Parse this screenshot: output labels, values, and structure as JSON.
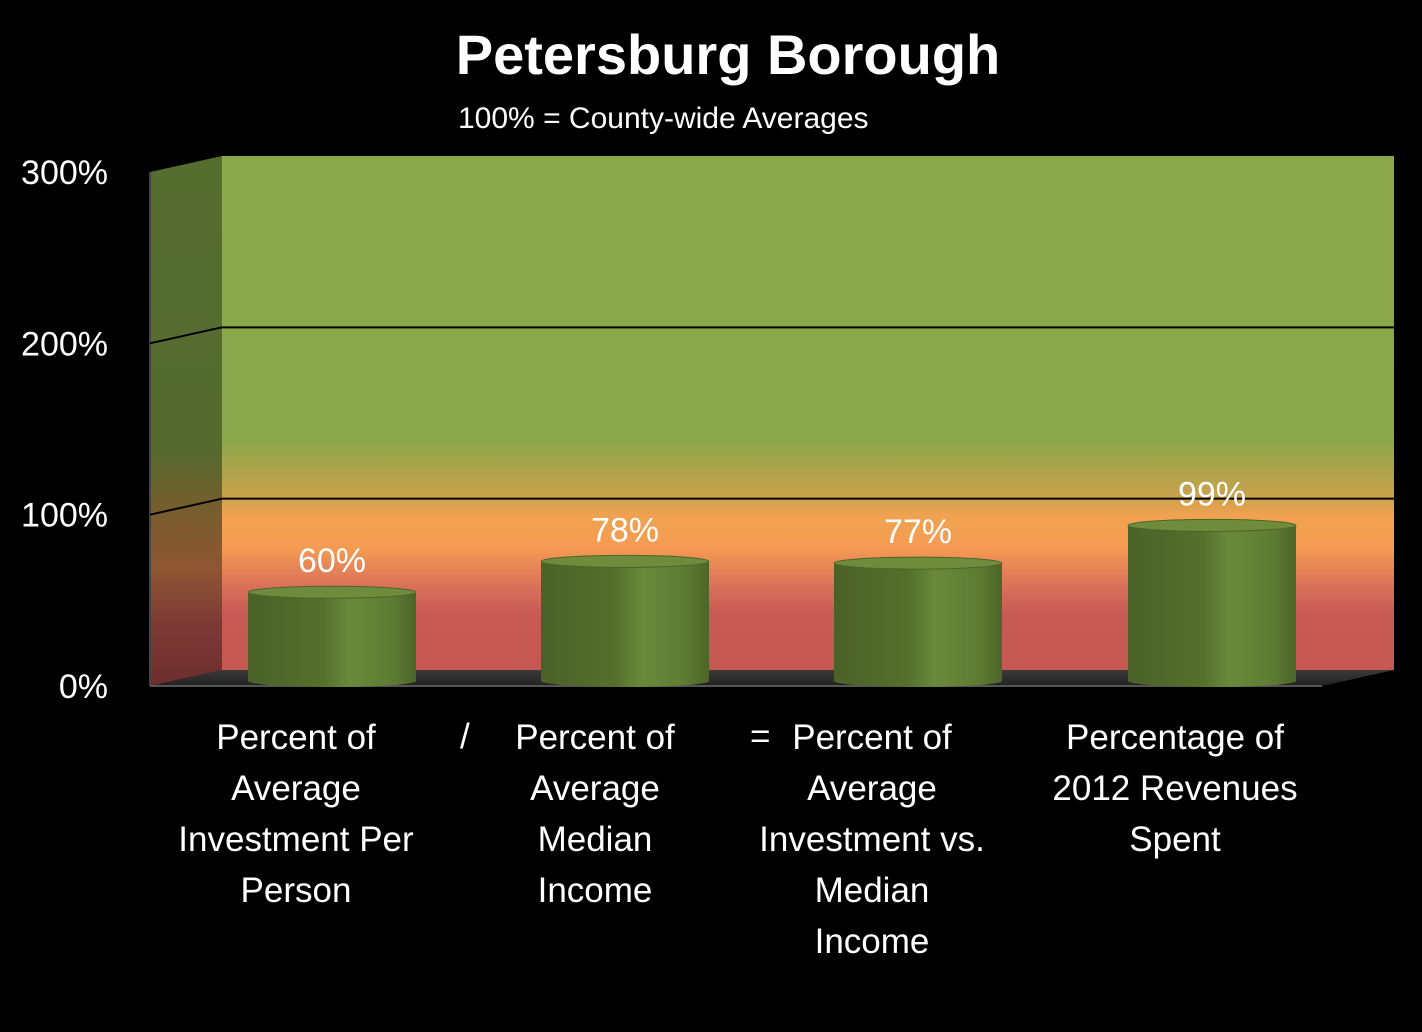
{
  "chart_data": {
    "type": "bar",
    "title": "Petersburg Borough",
    "subtitle": "100% =  County-wide Averages",
    "categories": [
      "Percent of\nAverage\nInvestment Per\nPerson",
      "Percent of\nAverage\nMedian\nIncome",
      "Percent of\nAverage\nInvestment vs.\nMedian\nIncome",
      "Percentage of\n2012 Revenues\nSpent"
    ],
    "values": [
      60,
      78,
      77,
      99
    ],
    "data_labels": [
      "60%",
      "78%",
      "77%",
      "99%"
    ],
    "operators": [
      "/",
      "="
    ],
    "ylim": [
      0,
      300
    ],
    "yticks": [
      0,
      100,
      200,
      300
    ],
    "ytick_labels": [
      "0%",
      "100%",
      "200%",
      "300%"
    ],
    "xlabel": "",
    "ylabel": "",
    "grid": true,
    "colors": {
      "bar": "#5e7a32",
      "bar_top": "#6f8c3c",
      "background_top": "#8aa84a",
      "background_mid": "#f5a04f",
      "background_bottom": "#c85a55"
    }
  }
}
